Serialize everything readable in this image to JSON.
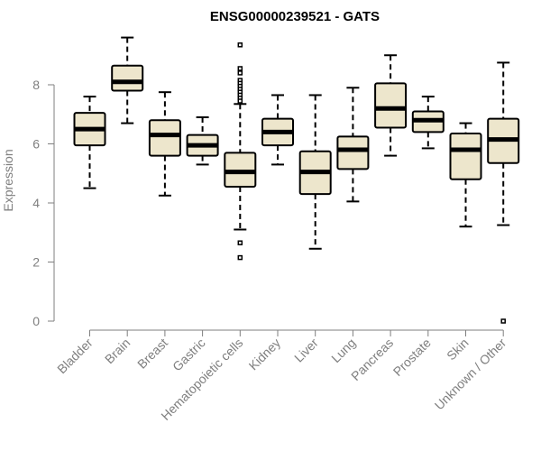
{
  "chart_data": {
    "type": "boxplot",
    "title": "ENSG00000239521 - GATS",
    "xlabel": "",
    "ylabel": "Expression",
    "ylim": [
      0,
      10
    ],
    "yticks": [
      0,
      2,
      4,
      6,
      8
    ],
    "categories": [
      "Bladder",
      "Brain",
      "Breast",
      "Gastric",
      "Hematopoietic cells",
      "Kidney",
      "Liver",
      "Lung",
      "Pancreas",
      "Prostate",
      "Skin",
      "Unknown / Other"
    ],
    "boxes": [
      {
        "category": "Bladder",
        "min": 4.5,
        "q1": 5.95,
        "median": 6.5,
        "q3": 7.05,
        "max": 7.6,
        "outliers": []
      },
      {
        "category": "Brain",
        "min": 6.7,
        "q1": 7.8,
        "median": 8.1,
        "q3": 8.65,
        "max": 9.6,
        "outliers": []
      },
      {
        "category": "Breast",
        "min": 4.25,
        "q1": 5.6,
        "median": 6.3,
        "q3": 6.8,
        "max": 7.75,
        "outliers": []
      },
      {
        "category": "Gastric",
        "min": 5.3,
        "q1": 5.6,
        "median": 5.95,
        "q3": 6.3,
        "max": 6.9,
        "outliers": []
      },
      {
        "category": "Hematopoietic cells",
        "min": 3.1,
        "q1": 4.55,
        "median": 5.05,
        "q3": 5.7,
        "max": 7.35,
        "outliers": [
          9.35,
          8.55,
          8.4,
          8.15,
          8.05,
          7.95,
          7.85,
          7.75,
          7.65,
          7.55,
          7.45,
          2.65,
          2.15
        ]
      },
      {
        "category": "Kidney",
        "min": 5.3,
        "q1": 5.95,
        "median": 6.4,
        "q3": 6.85,
        "max": 7.65,
        "outliers": []
      },
      {
        "category": "Liver",
        "min": 2.45,
        "q1": 4.3,
        "median": 5.05,
        "q3": 5.75,
        "max": 7.65,
        "outliers": []
      },
      {
        "category": "Lung",
        "min": 4.05,
        "q1": 5.15,
        "median": 5.8,
        "q3": 6.25,
        "max": 7.9,
        "outliers": []
      },
      {
        "category": "Pancreas",
        "min": 5.6,
        "q1": 6.55,
        "median": 7.2,
        "q3": 8.05,
        "max": 9.0,
        "outliers": []
      },
      {
        "category": "Prostate",
        "min": 5.85,
        "q1": 6.4,
        "median": 6.8,
        "q3": 7.1,
        "max": 7.6,
        "outliers": []
      },
      {
        "category": "Skin",
        "min": 3.2,
        "q1": 4.8,
        "median": 5.8,
        "q3": 6.35,
        "max": 6.7,
        "outliers": []
      },
      {
        "category": "Unknown / Other",
        "min": 3.25,
        "q1": 5.35,
        "median": 6.15,
        "q3": 6.85,
        "max": 8.75,
        "outliers": [
          0.0
        ]
      }
    ]
  }
}
